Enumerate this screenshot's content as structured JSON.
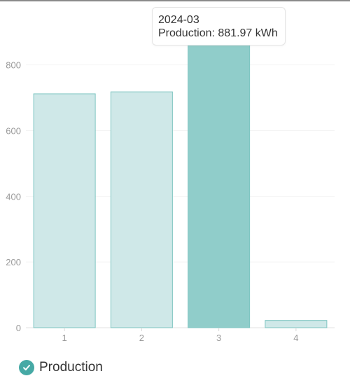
{
  "chart_data": {
    "type": "bar",
    "categories": [
      "1",
      "2",
      "3",
      "4"
    ],
    "series": [
      {
        "name": "Production",
        "values": [
          712,
          718,
          881.97,
          22
        ]
      }
    ],
    "ylim": [
      0,
      940
    ],
    "yticks": [
      0,
      200,
      400,
      600,
      800
    ],
    "highlighted_index": 2,
    "legend_position": "bottom-left",
    "grid": true,
    "colors": {
      "bar_fill": "#cfe8e8",
      "bar_stroke": "#7ec5c1",
      "bar_highlight_fill": "#90cdca",
      "legend_icon": "#46a9a5"
    }
  },
  "tooltip": {
    "title": "2024-03",
    "body": "Production: 881.97 kWh"
  },
  "legend": {
    "label": "Production",
    "icon": "check-circle-icon"
  }
}
